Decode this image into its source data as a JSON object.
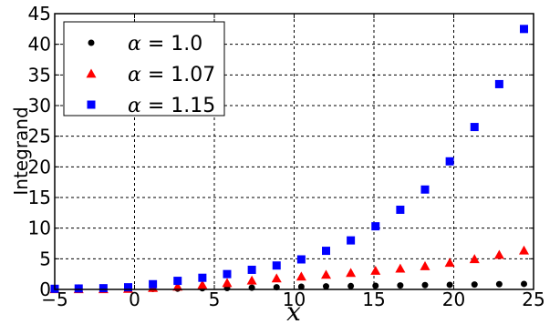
{
  "chart_data": {
    "type": "scatter",
    "xlabel": "x",
    "ylabel": "Integrand",
    "xlim": [
      -5,
      25
    ],
    "ylim": [
      0,
      45
    ],
    "xticks": [
      -5,
      0,
      5,
      10,
      15,
      20,
      25
    ],
    "yticks": [
      0,
      5,
      10,
      15,
      20,
      25,
      30,
      35,
      40,
      45
    ],
    "grid": true,
    "legend_position": "top-left",
    "series": [
      {
        "name": "α = 1.0",
        "alpha_value": "1.0",
        "marker": "circle",
        "color": "#000000",
        "x": [
          -5,
          -3.5,
          -1.95,
          -0.4,
          1.15,
          2.7,
          4.25,
          5.8,
          7.35,
          8.9,
          10.45,
          12.0,
          13.55,
          15.1,
          16.65,
          18.2,
          19.75,
          21.3,
          22.85,
          24.4
        ],
        "y": [
          0.05,
          0.05,
          0.05,
          0.05,
          0.08,
          0.12,
          0.18,
          0.22,
          0.28,
          0.35,
          0.45,
          0.5,
          0.55,
          0.6,
          0.65,
          0.7,
          0.75,
          0.8,
          0.85,
          0.9
        ]
      },
      {
        "name": "α = 1.07",
        "alpha_value": "1.07",
        "marker": "triangle",
        "color": "#ff0000",
        "x": [
          -5,
          -3.5,
          -1.95,
          -0.4,
          1.15,
          2.7,
          4.25,
          5.8,
          7.35,
          8.9,
          10.45,
          12.0,
          13.55,
          15.1,
          16.65,
          18.2,
          19.75,
          21.3,
          22.85,
          24.4
        ],
        "y": [
          0.05,
          0.05,
          0.05,
          0.1,
          0.25,
          0.45,
          0.75,
          1.05,
          1.45,
          1.8,
          2.1,
          2.4,
          2.7,
          3.05,
          3.4,
          3.8,
          4.35,
          4.95,
          5.65,
          6.35
        ]
      },
      {
        "name": "α = 1.15",
        "alpha_value": "1.15",
        "marker": "square",
        "color": "#0000ff",
        "x": [
          -5,
          -3.5,
          -1.95,
          -0.4,
          1.15,
          2.7,
          4.25,
          5.8,
          7.35,
          8.9,
          10.45,
          12.0,
          13.55,
          15.1,
          16.65,
          18.2,
          19.75,
          21.3,
          22.85,
          24.4
        ],
        "y": [
          0.1,
          0.15,
          0.2,
          0.35,
          0.85,
          1.4,
          1.9,
          2.5,
          3.2,
          3.9,
          4.9,
          6.3,
          8.0,
          10.3,
          13.0,
          16.3,
          20.9,
          26.5,
          33.5,
          42.5
        ]
      }
    ]
  }
}
